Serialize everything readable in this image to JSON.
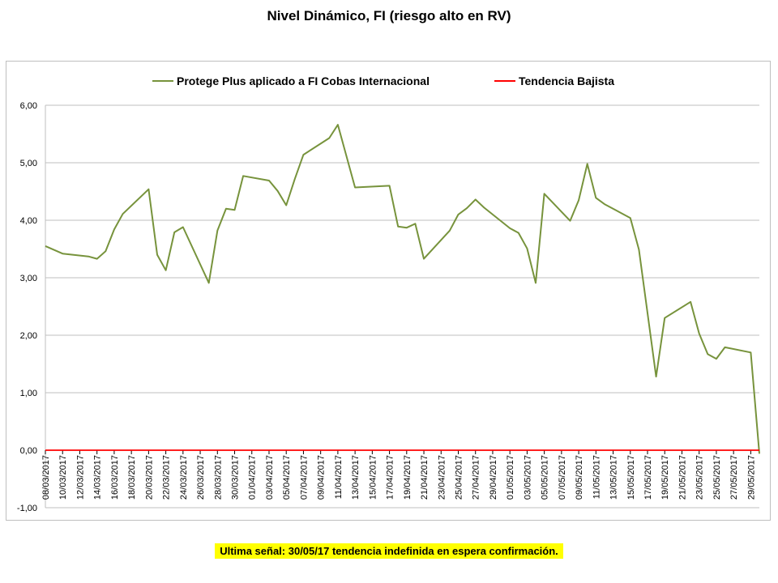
{
  "chart_data": {
    "type": "line",
    "title": "Nivel Dinámico, FI (riesgo alto en RV)",
    "xlabel": "",
    "ylabel": "",
    "ylim": [
      -1,
      6
    ],
    "yticks": [
      "-1,00",
      "0,00",
      "1,00",
      "2,00",
      "3,00",
      "4,00",
      "5,00",
      "6,00"
    ],
    "ytick_values": [
      -1,
      0,
      1,
      2,
      3,
      4,
      5,
      6
    ],
    "x_tick_labels": [
      "08/03/2017",
      "10/03/2017",
      "12/03/2017",
      "14/03/2017",
      "16/03/2017",
      "18/03/2017",
      "20/03/2017",
      "22/03/2017",
      "24/03/2017",
      "26/03/2017",
      "28/03/2017",
      "30/03/2017",
      "01/04/2017",
      "03/04/2017",
      "05/04/2017",
      "07/04/2017",
      "09/04/2017",
      "11/04/2017",
      "13/04/2017",
      "15/04/2017",
      "17/04/2017",
      "19/04/2017",
      "21/04/2017",
      "23/04/2017",
      "25/04/2017",
      "27/04/2017",
      "29/04/2017",
      "01/05/2017",
      "03/05/2017",
      "05/05/2017",
      "07/05/2017",
      "09/05/2017",
      "11/05/2017",
      "13/05/2017",
      "15/05/2017",
      "17/05/2017",
      "19/05/2017",
      "21/05/2017",
      "23/05/2017",
      "25/05/2017",
      "27/05/2017",
      "29/05/2017"
    ],
    "grid": true,
    "legend_position": "top",
    "series": [
      {
        "name": "Protege Plus aplicado a FI Cobas Internacional",
        "color": "#77933c",
        "points": [
          [
            "08/03/2017",
            3.55
          ],
          [
            "10/03/2017",
            3.42
          ],
          [
            "13/03/2017",
            3.37
          ],
          [
            "14/03/2017",
            3.33
          ],
          [
            "15/03/2017",
            3.46
          ],
          [
            "16/03/2017",
            3.84
          ],
          [
            "17/03/2017",
            4.11
          ],
          [
            "20/03/2017",
            4.54
          ],
          [
            "21/03/2017",
            3.4
          ],
          [
            "22/03/2017",
            3.13
          ],
          [
            "23/03/2017",
            3.79
          ],
          [
            "24/03/2017",
            3.88
          ],
          [
            "27/03/2017",
            2.91
          ],
          [
            "28/03/2017",
            3.82
          ],
          [
            "29/03/2017",
            4.2
          ],
          [
            "30/03/2017",
            4.18
          ],
          [
            "31/03/2017",
            4.77
          ],
          [
            "03/04/2017",
            4.69
          ],
          [
            "04/04/2017",
            4.51
          ],
          [
            "05/04/2017",
            4.26
          ],
          [
            "06/04/2017",
            4.72
          ],
          [
            "07/04/2017",
            5.14
          ],
          [
            "10/04/2017",
            5.43
          ],
          [
            "11/04/2017",
            5.66
          ],
          [
            "13/04/2017",
            4.57
          ],
          [
            "17/04/2017",
            4.6
          ],
          [
            "18/04/2017",
            3.89
          ],
          [
            "19/04/2017",
            3.87
          ],
          [
            "20/04/2017",
            3.94
          ],
          [
            "21/04/2017",
            3.33
          ],
          [
            "24/04/2017",
            3.82
          ],
          [
            "25/04/2017",
            4.1
          ],
          [
            "26/04/2017",
            4.21
          ],
          [
            "27/04/2017",
            4.36
          ],
          [
            "28/04/2017",
            4.22
          ],
          [
            "01/05/2017",
            3.86
          ],
          [
            "02/05/2017",
            3.78
          ],
          [
            "03/05/2017",
            3.51
          ],
          [
            "04/05/2017",
            2.91
          ],
          [
            "05/05/2017",
            4.46
          ],
          [
            "08/05/2017",
            3.99
          ],
          [
            "09/05/2017",
            4.35
          ],
          [
            "10/05/2017",
            4.98
          ],
          [
            "11/05/2017",
            4.39
          ],
          [
            "12/05/2017",
            4.28
          ],
          [
            "15/05/2017",
            4.04
          ],
          [
            "16/05/2017",
            3.49
          ],
          [
            "18/05/2017",
            1.28
          ],
          [
            "19/05/2017",
            2.3
          ],
          [
            "22/05/2017",
            2.58
          ],
          [
            "23/05/2017",
            2.03
          ],
          [
            "24/05/2017",
            1.67
          ],
          [
            "25/05/2017",
            1.59
          ],
          [
            "26/05/2017",
            1.79
          ],
          [
            "29/05/2017",
            1.7
          ],
          [
            "30/05/2017",
            -0.06
          ]
        ]
      },
      {
        "name": "Tendencia Bajista",
        "color": "#ff0000",
        "points": [
          [
            "08/03/2017",
            0.0
          ],
          [
            "30/05/2017",
            0.0
          ]
        ]
      }
    ]
  },
  "footnote": "Ultima señal: 30/05/17 tendencia indefinida en espera confirmación."
}
